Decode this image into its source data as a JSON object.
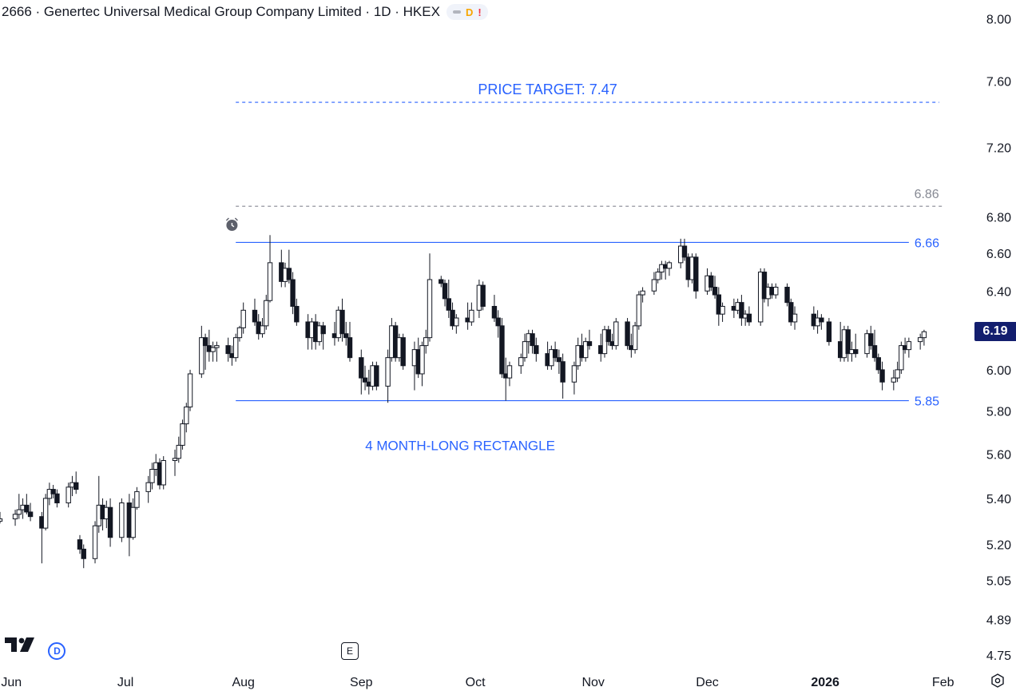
{
  "header": {
    "title": "2666 · Genertec Universal Medical Group Company Limited · 1D · HKEX",
    "flag_d": "D",
    "flag_alert": "!"
  },
  "colors": {
    "accent": "#2962ff",
    "candle": "#131722",
    "dashed_gray": "#868993",
    "price_tag": "#131e6e"
  },
  "last_price": "6.19",
  "markers": {
    "dividend": "D",
    "earnings": "E"
  },
  "icons": [
    "tradingview-logo",
    "alarm-clock-icon",
    "settings-icon"
  ],
  "chart_data": {
    "type": "candlestick",
    "y_scale": "log",
    "ylim": [
      4.7,
      8.07
    ],
    "y_ticks": [
      "8.00",
      "7.60",
      "7.20",
      "6.80",
      "6.60",
      "6.40",
      "6.00",
      "5.80",
      "5.60",
      "5.40",
      "5.20",
      "5.05",
      "4.89",
      "4.75"
    ],
    "x_labels": [
      "Jun",
      "Jul",
      "Aug",
      "Sep",
      "Oct",
      "Nov",
      "Dec",
      "2026",
      "Feb"
    ],
    "x_label_dates": [
      "2025-06-01",
      "2025-07-01",
      "2025-08-01",
      "2025-09-01",
      "2025-10-01",
      "2025-11-01",
      "2025-12-01",
      "2026-01-01",
      "2026-02-01"
    ],
    "x_range": [
      "2025-05-29",
      "2026-02-04"
    ],
    "dividend_marker_date": "2025-06-13",
    "earnings_marker_date": "2025-08-29",
    "alarm_marker_date": "2025-07-29",
    "annotations": [
      {
        "text": "PRICE TARGET: 7.47",
        "price": 7.47,
        "style": "dashed",
        "from": "2025-07-30",
        "to": "2026-01-31"
      },
      {
        "text": "6.86",
        "price": 6.86,
        "style": "dashed-gray",
        "from": "2025-07-30",
        "to": "2026-02-01"
      },
      {
        "text": "6.66",
        "price": 6.66,
        "style": "solid",
        "from": "2025-07-30",
        "to": "2026-01-23"
      },
      {
        "text": "5.85",
        "price": 5.85,
        "style": "solid",
        "from": "2025-07-30",
        "to": "2026-01-23"
      },
      {
        "text": "4 MONTH-LONG RECTANGLE",
        "price": 5.64,
        "style": "label",
        "at": "2025-09-27"
      }
    ],
    "candles": [
      [
        "2025-05-29",
        5.3,
        5.34,
        5.29,
        5.31
      ],
      [
        "2025-06-02",
        5.31,
        5.35,
        5.28,
        5.33
      ],
      [
        "2025-06-03",
        5.33,
        5.42,
        5.31,
        5.35
      ],
      [
        "2025-06-04",
        5.35,
        5.4,
        5.31,
        5.37
      ],
      [
        "2025-06-05",
        5.37,
        5.42,
        5.33,
        5.34
      ],
      [
        "2025-06-06",
        5.34,
        5.38,
        5.3,
        5.32
      ],
      [
        "2025-06-09",
        5.32,
        5.34,
        5.12,
        5.27
      ],
      [
        "2025-06-10",
        5.27,
        5.42,
        5.26,
        5.4
      ],
      [
        "2025-06-11",
        5.4,
        5.47,
        5.37,
        5.44
      ],
      [
        "2025-06-12",
        5.44,
        5.46,
        5.4,
        5.42
      ],
      [
        "2025-06-13",
        5.42,
        5.44,
        5.36,
        5.38
      ],
      [
        "2025-06-16",
        5.38,
        5.47,
        5.36,
        5.45
      ],
      [
        "2025-06-17",
        5.45,
        5.5,
        5.41,
        5.47
      ],
      [
        "2025-06-18",
        5.47,
        5.52,
        5.42,
        5.44
      ],
      [
        "2025-06-19",
        5.22,
        5.24,
        5.16,
        5.18
      ],
      [
        "2025-06-20",
        5.18,
        5.2,
        5.1,
        5.14
      ],
      [
        "2025-06-23",
        5.14,
        5.3,
        5.12,
        5.28
      ],
      [
        "2025-06-24",
        5.28,
        5.5,
        5.25,
        5.37
      ],
      [
        "2025-06-25",
        5.37,
        5.4,
        5.26,
        5.31
      ],
      [
        "2025-06-26",
        5.31,
        5.39,
        5.27,
        5.36
      ],
      [
        "2025-06-27",
        5.36,
        5.4,
        5.19,
        5.23
      ],
      [
        "2025-06-30",
        5.23,
        5.4,
        5.21,
        5.38
      ],
      [
        "2025-07-02",
        5.38,
        5.42,
        5.15,
        5.23
      ],
      [
        "2025-07-03",
        5.23,
        5.4,
        5.22,
        5.36
      ],
      [
        "2025-07-04",
        5.36,
        5.45,
        5.35,
        5.43
      ],
      [
        "2025-07-07",
        5.43,
        5.5,
        5.38,
        5.47
      ],
      [
        "2025-07-08",
        5.47,
        5.56,
        5.44,
        5.53
      ],
      [
        "2025-07-09",
        5.53,
        5.6,
        5.5,
        5.56
      ],
      [
        "2025-07-10",
        5.56,
        5.58,
        5.44,
        5.46
      ],
      [
        "2025-07-11",
        5.46,
        5.59,
        5.44,
        5.57
      ],
      [
        "2025-07-14",
        5.57,
        5.62,
        5.5,
        5.58
      ],
      [
        "2025-07-15",
        5.58,
        5.68,
        5.56,
        5.64
      ],
      [
        "2025-07-16",
        5.64,
        5.76,
        5.62,
        5.74
      ],
      [
        "2025-07-17",
        5.74,
        5.84,
        5.7,
        5.82
      ],
      [
        "2025-07-18",
        5.82,
        6.0,
        5.8,
        5.98
      ],
      [
        "2025-07-21",
        5.98,
        6.22,
        5.96,
        6.16
      ],
      [
        "2025-07-22",
        6.16,
        6.18,
        6.0,
        6.12
      ],
      [
        "2025-07-23",
        6.12,
        6.2,
        6.04,
        6.09
      ],
      [
        "2025-07-24",
        6.09,
        6.14,
        6.04,
        6.11
      ],
      [
        "2025-07-25",
        6.11,
        6.14,
        6.04,
        6.12
      ],
      [
        "2025-07-28",
        6.12,
        6.16,
        6.04,
        6.08
      ],
      [
        "2025-07-29",
        6.08,
        6.12,
        6.02,
        6.06
      ],
      [
        "2025-07-30",
        6.06,
        6.18,
        6.04,
        6.16
      ],
      [
        "2025-07-31",
        6.16,
        6.22,
        6.14,
        6.21
      ],
      [
        "2025-08-01",
        6.21,
        6.34,
        6.18,
        6.3
      ],
      [
        "2025-08-04",
        6.3,
        6.36,
        6.22,
        6.24
      ],
      [
        "2025-08-05",
        6.24,
        6.28,
        6.15,
        6.18
      ],
      [
        "2025-08-06",
        6.18,
        6.26,
        6.16,
        6.22
      ],
      [
        "2025-08-07",
        6.22,
        6.38,
        6.2,
        6.35
      ],
      [
        "2025-08-08",
        6.35,
        6.7,
        6.34,
        6.55
      ],
      [
        "2025-08-11",
        6.55,
        6.62,
        6.42,
        6.45
      ],
      [
        "2025-08-12",
        6.45,
        6.55,
        6.42,
        6.52
      ],
      [
        "2025-08-13",
        6.52,
        6.62,
        6.44,
        6.46
      ],
      [
        "2025-08-14",
        6.46,
        6.5,
        6.28,
        6.32
      ],
      [
        "2025-08-15",
        6.32,
        6.36,
        6.22,
        6.24
      ],
      [
        "2025-08-18",
        6.24,
        6.28,
        6.1,
        6.16
      ],
      [
        "2025-08-19",
        6.16,
        6.26,
        6.1,
        6.24
      ],
      [
        "2025-08-20",
        6.24,
        6.28,
        6.1,
        6.14
      ],
      [
        "2025-08-21",
        6.14,
        6.24,
        6.12,
        6.22
      ],
      [
        "2025-08-22",
        6.22,
        6.24,
        6.1,
        6.18
      ],
      [
        "2025-08-25",
        6.18,
        6.24,
        6.12,
        6.16
      ],
      [
        "2025-08-26",
        6.16,
        6.32,
        6.14,
        6.3
      ],
      [
        "2025-08-27",
        6.3,
        6.36,
        6.14,
        6.18
      ],
      [
        "2025-08-28",
        6.18,
        6.24,
        6.12,
        6.16
      ],
      [
        "2025-08-29",
        6.16,
        6.24,
        6.04,
        6.06
      ],
      [
        "2025-09-01",
        6.06,
        6.1,
        5.88,
        5.96
      ],
      [
        "2025-09-02",
        5.96,
        6.02,
        5.9,
        5.94
      ],
      [
        "2025-09-03",
        5.94,
        6.0,
        5.88,
        5.92
      ],
      [
        "2025-09-04",
        5.92,
        6.04,
        5.9,
        6.02
      ],
      [
        "2025-09-05",
        6.02,
        6.04,
        5.9,
        5.92
      ],
      [
        "2025-09-08",
        5.92,
        6.1,
        5.84,
        6.06
      ],
      [
        "2025-09-09",
        6.06,
        6.26,
        6.04,
        6.22
      ],
      [
        "2025-09-10",
        6.22,
        6.24,
        6.04,
        6.06
      ],
      [
        "2025-09-11",
        6.06,
        6.18,
        6.04,
        6.16
      ],
      [
        "2025-09-12",
        6.16,
        6.18,
        6.0,
        6.02
      ],
      [
        "2025-09-15",
        6.02,
        6.14,
        5.9,
        6.1
      ],
      [
        "2025-09-16",
        6.1,
        6.16,
        5.96,
        5.98
      ],
      [
        "2025-09-17",
        5.98,
        6.14,
        5.92,
        6.12
      ],
      [
        "2025-09-18",
        6.12,
        6.2,
        6.08,
        6.16
      ],
      [
        "2025-09-19",
        6.16,
        6.6,
        6.14,
        6.46
      ],
      [
        "2025-09-22",
        6.46,
        6.48,
        6.42,
        6.44
      ],
      [
        "2025-09-23",
        6.44,
        6.46,
        6.32,
        6.36
      ],
      [
        "2025-09-24",
        6.36,
        6.46,
        6.26,
        6.3
      ],
      [
        "2025-09-25",
        6.3,
        6.34,
        6.2,
        6.22
      ],
      [
        "2025-09-26",
        6.22,
        6.28,
        6.18,
        6.26
      ],
      [
        "2025-09-29",
        6.26,
        6.34,
        6.2,
        6.24
      ],
      [
        "2025-09-30",
        6.24,
        6.34,
        6.22,
        6.3
      ],
      [
        "2025-10-02",
        6.3,
        6.46,
        6.26,
        6.43
      ],
      [
        "2025-10-03",
        6.43,
        6.45,
        6.3,
        6.32
      ],
      [
        "2025-10-06",
        6.32,
        6.38,
        6.24,
        6.26
      ],
      [
        "2025-10-07",
        6.26,
        6.3,
        6.16,
        6.22
      ],
      [
        "2025-10-08",
        6.22,
        6.26,
        5.96,
        5.98
      ],
      [
        "2025-10-09",
        5.98,
        6.06,
        5.85,
        5.96
      ],
      [
        "2025-10-10",
        5.96,
        6.04,
        5.92,
        6.02
      ],
      [
        "2025-10-13",
        6.02,
        6.08,
        5.98,
        6.06
      ],
      [
        "2025-10-14",
        6.06,
        6.18,
        6.04,
        6.14
      ],
      [
        "2025-10-15",
        6.14,
        6.2,
        6.08,
        6.18
      ],
      [
        "2025-10-16",
        6.18,
        6.2,
        6.08,
        6.12
      ],
      [
        "2025-10-17",
        6.12,
        6.16,
        6.04,
        6.08
      ],
      [
        "2025-10-20",
        6.08,
        6.14,
        6.0,
        6.02
      ],
      [
        "2025-10-21",
        6.02,
        6.12,
        6.0,
        6.1
      ],
      [
        "2025-10-22",
        6.1,
        6.14,
        6.04,
        6.06
      ],
      [
        "2025-10-23",
        6.06,
        6.1,
        5.98,
        6.04
      ],
      [
        "2025-10-24",
        6.04,
        6.08,
        5.86,
        5.94
      ],
      [
        "2025-10-27",
        5.94,
        6.04,
        5.88,
        6.02
      ],
      [
        "2025-10-28",
        6.02,
        6.16,
        6.0,
        6.12
      ],
      [
        "2025-10-29",
        6.12,
        6.18,
        6.04,
        6.06
      ],
      [
        "2025-10-30",
        6.06,
        6.16,
        6.04,
        6.14
      ],
      [
        "2025-10-31",
        6.14,
        6.2,
        6.1,
        6.12
      ],
      [
        "2025-11-03",
        6.12,
        6.18,
        6.04,
        6.08
      ],
      [
        "2025-11-04",
        6.08,
        6.22,
        6.06,
        6.2
      ],
      [
        "2025-11-05",
        6.2,
        6.22,
        6.12,
        6.14
      ],
      [
        "2025-11-06",
        6.14,
        6.18,
        6.1,
        6.12
      ],
      [
        "2025-11-07",
        6.12,
        6.26,
        6.1,
        6.24
      ],
      [
        "2025-11-10",
        6.24,
        6.26,
        6.1,
        6.12
      ],
      [
        "2025-11-11",
        6.12,
        6.18,
        6.06,
        6.1
      ],
      [
        "2025-11-12",
        6.1,
        6.24,
        6.08,
        6.22
      ],
      [
        "2025-11-13",
        6.22,
        6.4,
        6.2,
        6.38
      ],
      [
        "2025-11-14",
        6.38,
        6.42,
        6.34,
        6.4
      ],
      [
        "2025-11-17",
        6.4,
        6.5,
        6.38,
        6.46
      ],
      [
        "2025-11-18",
        6.46,
        6.52,
        6.44,
        6.5
      ],
      [
        "2025-11-19",
        6.5,
        6.56,
        6.46,
        6.54
      ],
      [
        "2025-11-20",
        6.54,
        6.56,
        6.46,
        6.52
      ],
      [
        "2025-11-21",
        6.52,
        6.56,
        6.48,
        6.55
      ],
      [
        "2025-11-24",
        6.55,
        6.68,
        6.52,
        6.64
      ],
      [
        "2025-11-25",
        6.64,
        6.68,
        6.56,
        6.58
      ],
      [
        "2025-11-26",
        6.58,
        6.6,
        6.42,
        6.46
      ],
      [
        "2025-11-27",
        6.46,
        6.6,
        6.44,
        6.58
      ],
      [
        "2025-11-28",
        6.58,
        6.6,
        6.36,
        6.4
      ],
      [
        "2025-12-01",
        6.4,
        6.52,
        6.38,
        6.48
      ],
      [
        "2025-12-02",
        6.48,
        6.5,
        6.4,
        6.42
      ],
      [
        "2025-12-03",
        6.42,
        6.48,
        6.36,
        6.38
      ],
      [
        "2025-12-04",
        6.38,
        6.42,
        6.22,
        6.28
      ],
      [
        "2025-12-05",
        6.28,
        6.34,
        6.24,
        6.32
      ],
      [
        "2025-12-08",
        6.32,
        6.36,
        6.26,
        6.3
      ],
      [
        "2025-12-09",
        6.3,
        6.36,
        6.28,
        6.34
      ],
      [
        "2025-12-10",
        6.34,
        6.38,
        6.22,
        6.26
      ],
      [
        "2025-12-11",
        6.26,
        6.3,
        6.22,
        6.28
      ],
      [
        "2025-12-12",
        6.28,
        6.32,
        6.22,
        6.24
      ],
      [
        "2025-12-15",
        6.24,
        6.52,
        6.22,
        6.5
      ],
      [
        "2025-12-16",
        6.5,
        6.52,
        6.34,
        6.36
      ],
      [
        "2025-12-17",
        6.36,
        6.44,
        6.32,
        6.42
      ],
      [
        "2025-12-18",
        6.42,
        6.44,
        6.36,
        6.38
      ],
      [
        "2025-12-19",
        6.38,
        6.44,
        6.36,
        6.42
      ],
      [
        "2025-12-22",
        6.42,
        6.44,
        6.32,
        6.34
      ],
      [
        "2025-12-23",
        6.34,
        6.36,
        6.22,
        6.24
      ],
      [
        "2025-12-24",
        6.24,
        6.32,
        6.2,
        6.28
      ],
      [
        "2025-12-29",
        6.28,
        6.32,
        6.2,
        6.22
      ],
      [
        "2025-12-30",
        6.22,
        6.3,
        6.18,
        6.26
      ],
      [
        "2025-12-31",
        6.26,
        6.28,
        6.2,
        6.24
      ],
      [
        "2026-01-02",
        6.24,
        6.26,
        6.12,
        6.14
      ],
      [
        "2026-01-05",
        6.14,
        6.24,
        6.04,
        6.06
      ],
      [
        "2026-01-06",
        6.06,
        6.22,
        6.04,
        6.2
      ],
      [
        "2026-01-07",
        6.2,
        6.22,
        6.04,
        6.08
      ],
      [
        "2026-01-08",
        6.08,
        6.14,
        6.04,
        6.1
      ],
      [
        "2026-01-09",
        6.1,
        6.18,
        6.06,
        6.08
      ],
      [
        "2026-01-12",
        6.08,
        6.2,
        6.06,
        6.18
      ],
      [
        "2026-01-13",
        6.18,
        6.22,
        6.1,
        6.12
      ],
      [
        "2026-01-14",
        6.12,
        6.2,
        6.04,
        6.06
      ],
      [
        "2026-01-15",
        6.06,
        6.08,
        5.98,
        6.0
      ],
      [
        "2026-01-16",
        6.0,
        6.04,
        5.9,
        5.94
      ],
      [
        "2026-01-19",
        5.94,
        6.0,
        5.9,
        5.96
      ],
      [
        "2026-01-20",
        5.96,
        6.04,
        5.94,
        6.0
      ],
      [
        "2026-01-21",
        6.0,
        6.14,
        5.98,
        6.12
      ],
      [
        "2026-01-22",
        6.12,
        6.16,
        6.08,
        6.1
      ],
      [
        "2026-01-23",
        6.1,
        6.16,
        6.06,
        6.14
      ],
      [
        "2026-01-26",
        6.14,
        6.18,
        6.1,
        6.16
      ],
      [
        "2026-01-27",
        6.16,
        6.2,
        6.12,
        6.19
      ]
    ]
  }
}
